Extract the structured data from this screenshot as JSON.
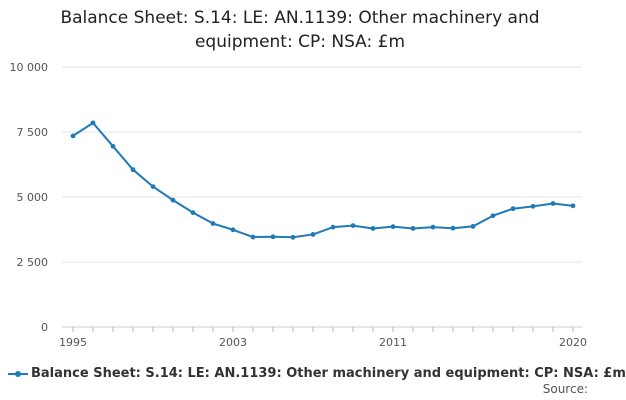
{
  "chart_data": {
    "type": "line",
    "title": "Balance Sheet: S.14: LE: AN.1139: Other machinery and equipment: CP: NSA: £m",
    "x": [
      1995,
      1996,
      1997,
      1998,
      1999,
      2000,
      2001,
      2002,
      2003,
      2004,
      2005,
      2006,
      2007,
      2008,
      2009,
      2010,
      2011,
      2012,
      2013,
      2014,
      2015,
      2016,
      2017,
      2018,
      2019,
      2020
    ],
    "series": [
      {
        "name": "Balance Sheet: S.14: LE: AN.1139: Other machinery and equipment: CP: NSA: £m",
        "values": [
          7350,
          7850,
          6950,
          6050,
          5400,
          4880,
          4400,
          3980,
          3740,
          3460,
          3470,
          3450,
          3560,
          3840,
          3900,
          3790,
          3860,
          3790,
          3840,
          3800,
          3870,
          4280,
          4550,
          4640,
          4750,
          4660
        ],
        "color": "#1f7ab8"
      }
    ],
    "ylim": [
      0,
      10000
    ],
    "yticks": [
      0,
      2500,
      5000,
      7500,
      10000
    ],
    "ytick_labels": [
      "0",
      "2 500",
      "5 000",
      "7 500",
      "10 000"
    ],
    "xticks": [
      1995,
      2003,
      2011,
      2020
    ],
    "xtick_labels": [
      "1995",
      "2003",
      "2011",
      "2020"
    ],
    "grid": true,
    "legend_position": "bottom"
  },
  "source_label": "Source:"
}
